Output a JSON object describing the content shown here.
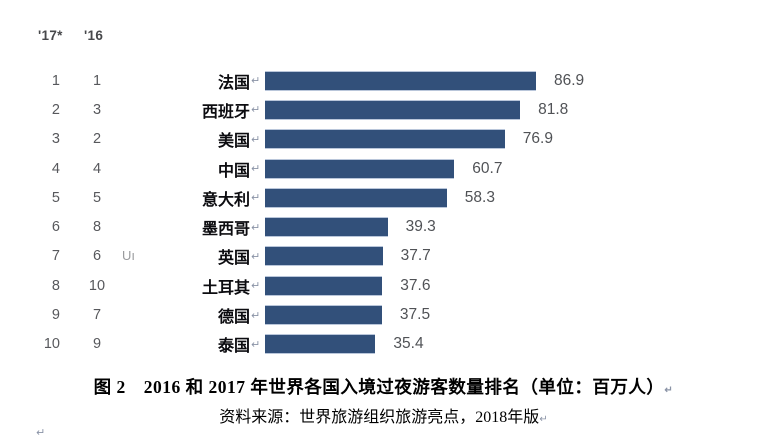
{
  "chart_data": {
    "type": "bar",
    "orientation": "horizontal",
    "unit_note": "百万人",
    "rank_column_headers": {
      "col_2017": "'17*",
      "col_2016": "'16"
    },
    "categories": [
      "法国",
      "西班牙",
      "美国",
      "中国",
      "意大利",
      "墨西哥",
      "英国",
      "土耳其",
      "德国",
      "泰国"
    ],
    "values": [
      86.9,
      81.8,
      76.9,
      60.7,
      58.3,
      39.3,
      37.7,
      37.6,
      37.5,
      35.4
    ],
    "xlim": [
      0,
      86.9
    ],
    "bar_color": "#32507a",
    "value_label_color": "#505256",
    "leftover_text": "Uı",
    "rows": [
      {
        "rank_2017": "1",
        "rank_2016": "1",
        "country": "法国",
        "value": "86.9"
      },
      {
        "rank_2017": "2",
        "rank_2016": "3",
        "country": "西班牙",
        "value": "81.8"
      },
      {
        "rank_2017": "3",
        "rank_2016": "2",
        "country": "美国",
        "value": "76.9"
      },
      {
        "rank_2017": "4",
        "rank_2016": "4",
        "country": "中国",
        "value": "60.7"
      },
      {
        "rank_2017": "5",
        "rank_2016": "5",
        "country": "意大利",
        "value": "58.3"
      },
      {
        "rank_2017": "6",
        "rank_2016": "8",
        "country": "墨西哥",
        "value": "39.3"
      },
      {
        "rank_2017": "7",
        "rank_2016": "6",
        "country": "英国",
        "value": "37.7"
      },
      {
        "rank_2017": "8",
        "rank_2016": "10",
        "country": "土耳其",
        "value": "37.6"
      },
      {
        "rank_2017": "9",
        "rank_2016": "7",
        "country": "德国",
        "value": "37.5"
      },
      {
        "rank_2017": "10",
        "rank_2016": "9",
        "country": "泰国",
        "value": "35.4"
      }
    ]
  },
  "caption": {
    "line1": "图 2　2016 和 2017 年世界各国入境过夜游客数量排名（单位：百万人）",
    "line2": "资料来源：世界旅游组织旅游亮点，2018年版"
  },
  "marks": {
    "paragraph_return": "↵"
  }
}
